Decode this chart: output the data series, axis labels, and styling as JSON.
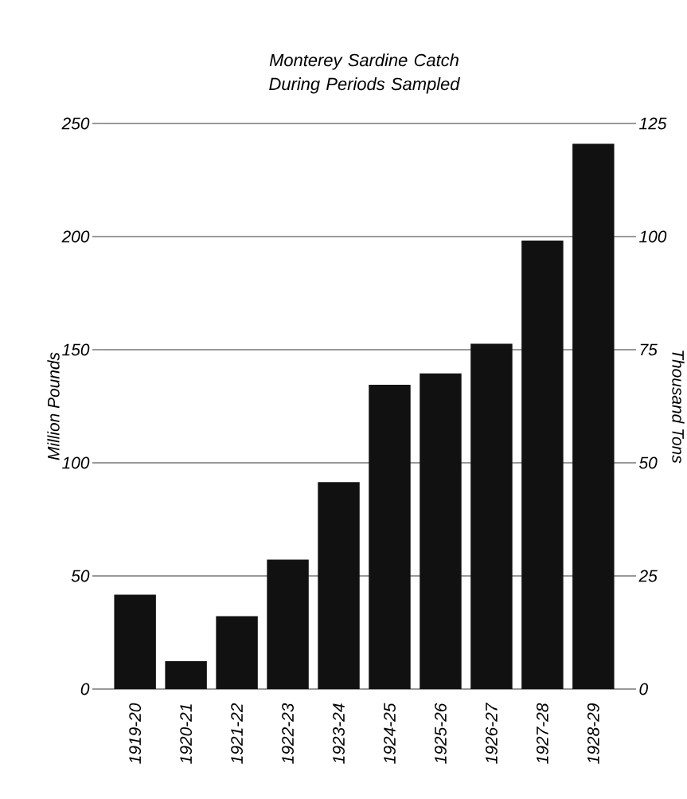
{
  "chart_data": {
    "type": "bar",
    "title": "Monterey Sardine Catch During Periods Sampled",
    "categories": [
      "1919-20",
      "1920-21",
      "1921-22",
      "1922-23",
      "1923-24",
      "1924-25",
      "1925-26",
      "1926-27",
      "1927-28",
      "1928-29"
    ],
    "values": [
      41.7,
      12.3,
      32.2,
      57.2,
      91.5,
      134.5,
      139.5,
      152.6,
      198.2,
      241
    ],
    "color": "#111111",
    "ylabel": "Million Pounds",
    "y2label": "Thousand Tons",
    "ylim": [
      0,
      250
    ],
    "yticks": [
      0,
      50,
      100,
      150,
      200,
      250
    ],
    "y2lim": [
      0,
      125
    ],
    "y2ticks": [
      0,
      25,
      50,
      75,
      100,
      125
    ],
    "grid": "y"
  }
}
